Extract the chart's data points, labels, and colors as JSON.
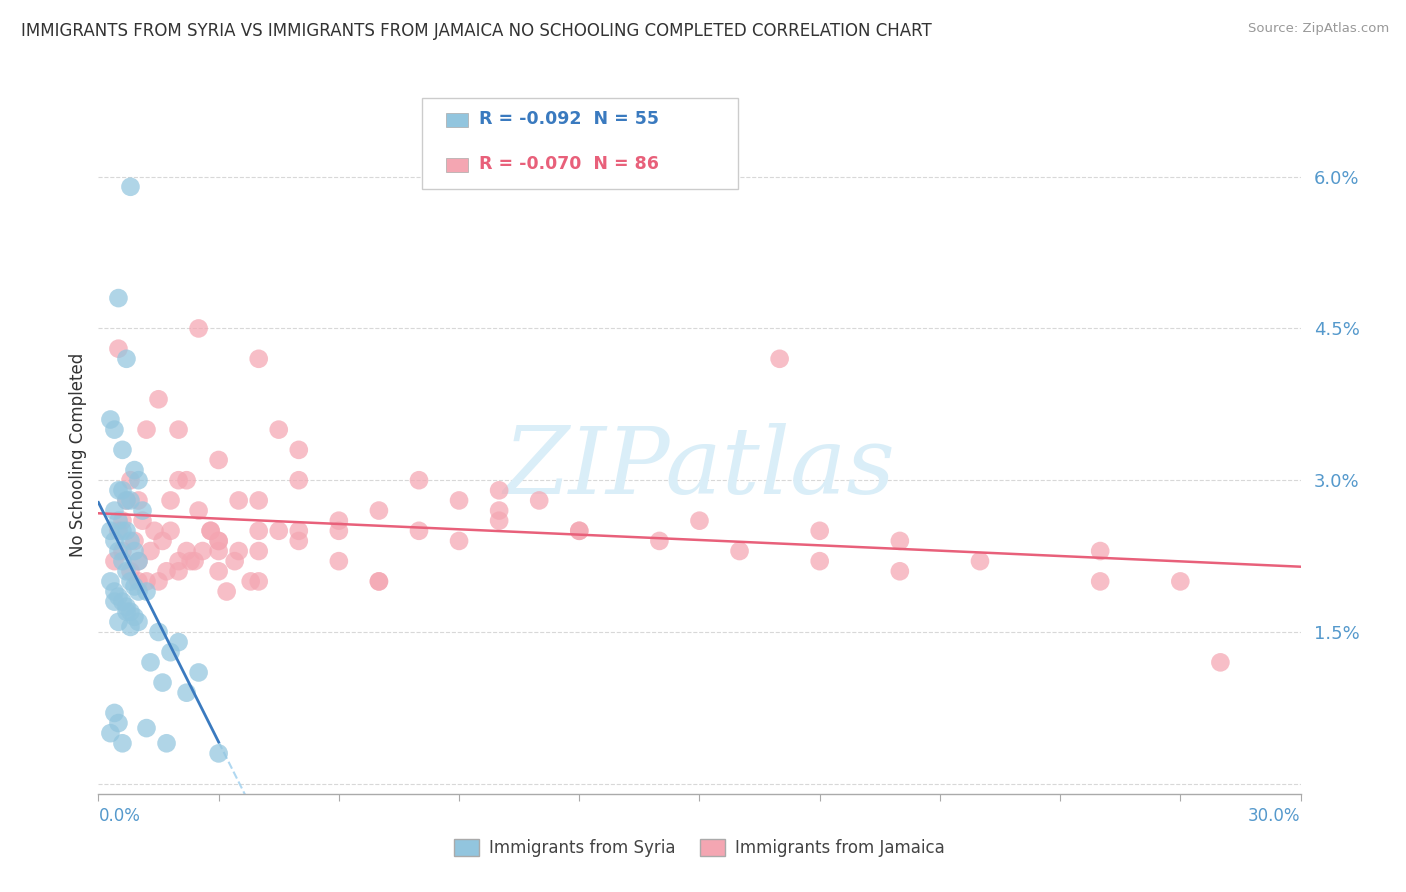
{
  "title": "IMMIGRANTS FROM SYRIA VS IMMIGRANTS FROM JAMAICA NO SCHOOLING COMPLETED CORRELATION CHART",
  "source": "Source: ZipAtlas.com",
  "ylabel": "No Schooling Completed",
  "ytick_vals": [
    0.0,
    1.5,
    3.0,
    4.5,
    6.0
  ],
  "ytick_labels": [
    "",
    "1.5%",
    "3.0%",
    "4.5%",
    "6.0%"
  ],
  "xlim": [
    0.0,
    30.0
  ],
  "ylim": [
    -0.1,
    6.6
  ],
  "legend_r_syria": "-0.092",
  "legend_n_syria": "55",
  "legend_r_jamaica": "-0.070",
  "legend_n_jamaica": "86",
  "legend_label_syria": "Immigrants from Syria",
  "legend_label_jamaica": "Immigrants from Jamaica",
  "syria_color": "#92c5de",
  "jamaica_color": "#f4a6b2",
  "trend_syria_color": "#3a7abf",
  "trend_jamaica_color": "#e8607a",
  "trend_dashed_color": "#a8d4f0",
  "watermark": "ZIPatlas",
  "watermark_color": "#daeef8",
  "bg_color": "#ffffff",
  "grid_color": "#d8d8d8",
  "axis_color": "#aaaaaa",
  "title_color": "#333333",
  "label_color": "#5599cc",
  "syria_x": [
    0.8,
    0.5,
    0.7,
    0.3,
    0.4,
    0.6,
    0.9,
    1.0,
    0.5,
    0.6,
    0.7,
    0.8,
    1.1,
    0.4,
    0.5,
    0.6,
    0.7,
    0.8,
    0.9,
    1.0,
    0.3,
    0.4,
    0.5,
    0.6,
    0.7,
    0.8,
    0.9,
    1.0,
    1.2,
    0.3,
    0.4,
    0.5,
    0.6,
    0.7,
    0.8,
    0.9,
    1.0,
    1.5,
    2.0,
    1.8,
    2.5,
    1.3,
    1.6,
    2.2,
    0.4,
    0.5,
    1.2,
    1.7,
    3.0,
    0.3,
    0.6,
    0.4,
    0.7,
    0.5,
    0.8
  ],
  "syria_y": [
    5.9,
    4.8,
    4.2,
    3.6,
    3.5,
    3.3,
    3.1,
    3.0,
    2.9,
    2.9,
    2.8,
    2.8,
    2.7,
    2.7,
    2.6,
    2.5,
    2.5,
    2.4,
    2.3,
    2.2,
    2.5,
    2.4,
    2.3,
    2.2,
    2.1,
    2.0,
    1.95,
    1.9,
    1.9,
    2.0,
    1.9,
    1.85,
    1.8,
    1.75,
    1.7,
    1.65,
    1.6,
    1.5,
    1.4,
    1.3,
    1.1,
    1.2,
    1.0,
    0.9,
    0.7,
    0.6,
    0.55,
    0.4,
    0.3,
    0.5,
    0.4,
    1.8,
    1.7,
    1.6,
    1.55
  ],
  "jamaica_x": [
    0.5,
    1.5,
    2.0,
    2.5,
    3.0,
    0.8,
    1.2,
    1.8,
    2.2,
    2.8,
    3.5,
    4.0,
    0.6,
    1.0,
    1.4,
    2.0,
    2.5,
    3.0,
    3.5,
    4.5,
    0.7,
    1.1,
    1.6,
    2.2,
    2.8,
    3.4,
    4.0,
    5.0,
    0.5,
    0.9,
    1.3,
    1.8,
    2.4,
    3.0,
    3.8,
    4.5,
    0.6,
    1.0,
    1.5,
    2.0,
    2.6,
    3.2,
    4.0,
    5.0,
    6.0,
    7.0,
    8.0,
    0.4,
    0.8,
    1.2,
    1.7,
    2.3,
    3.0,
    4.0,
    5.0,
    6.0,
    7.0,
    9.0,
    10.0,
    12.0,
    15.0,
    18.0,
    20.0,
    22.0,
    25.0,
    27.0,
    1.0,
    2.0,
    3.0,
    4.0,
    5.0,
    6.0,
    7.0,
    8.0,
    9.0,
    10.0,
    11.0,
    12.0,
    14.0,
    16.0,
    18.0,
    20.0,
    25.0,
    28.0,
    17.0,
    10.0
  ],
  "jamaica_y": [
    4.3,
    3.8,
    3.5,
    4.5,
    3.2,
    3.0,
    3.5,
    2.8,
    3.0,
    2.5,
    2.8,
    4.2,
    2.6,
    2.8,
    2.5,
    3.0,
    2.7,
    2.4,
    2.3,
    3.5,
    2.8,
    2.6,
    2.4,
    2.3,
    2.5,
    2.2,
    2.0,
    3.0,
    2.5,
    2.4,
    2.3,
    2.5,
    2.2,
    2.1,
    2.0,
    2.5,
    2.3,
    2.2,
    2.0,
    2.1,
    2.3,
    1.9,
    2.8,
    3.3,
    2.5,
    2.0,
    3.0,
    2.2,
    2.1,
    2.0,
    2.1,
    2.2,
    2.3,
    2.5,
    2.4,
    2.2,
    2.0,
    2.8,
    2.9,
    2.5,
    2.6,
    2.5,
    2.4,
    2.2,
    2.3,
    2.0,
    2.0,
    2.2,
    2.4,
    2.3,
    2.5,
    2.6,
    2.7,
    2.5,
    2.4,
    2.6,
    2.8,
    2.5,
    2.4,
    2.3,
    2.2,
    2.1,
    2.0,
    1.2,
    4.2,
    2.7
  ]
}
